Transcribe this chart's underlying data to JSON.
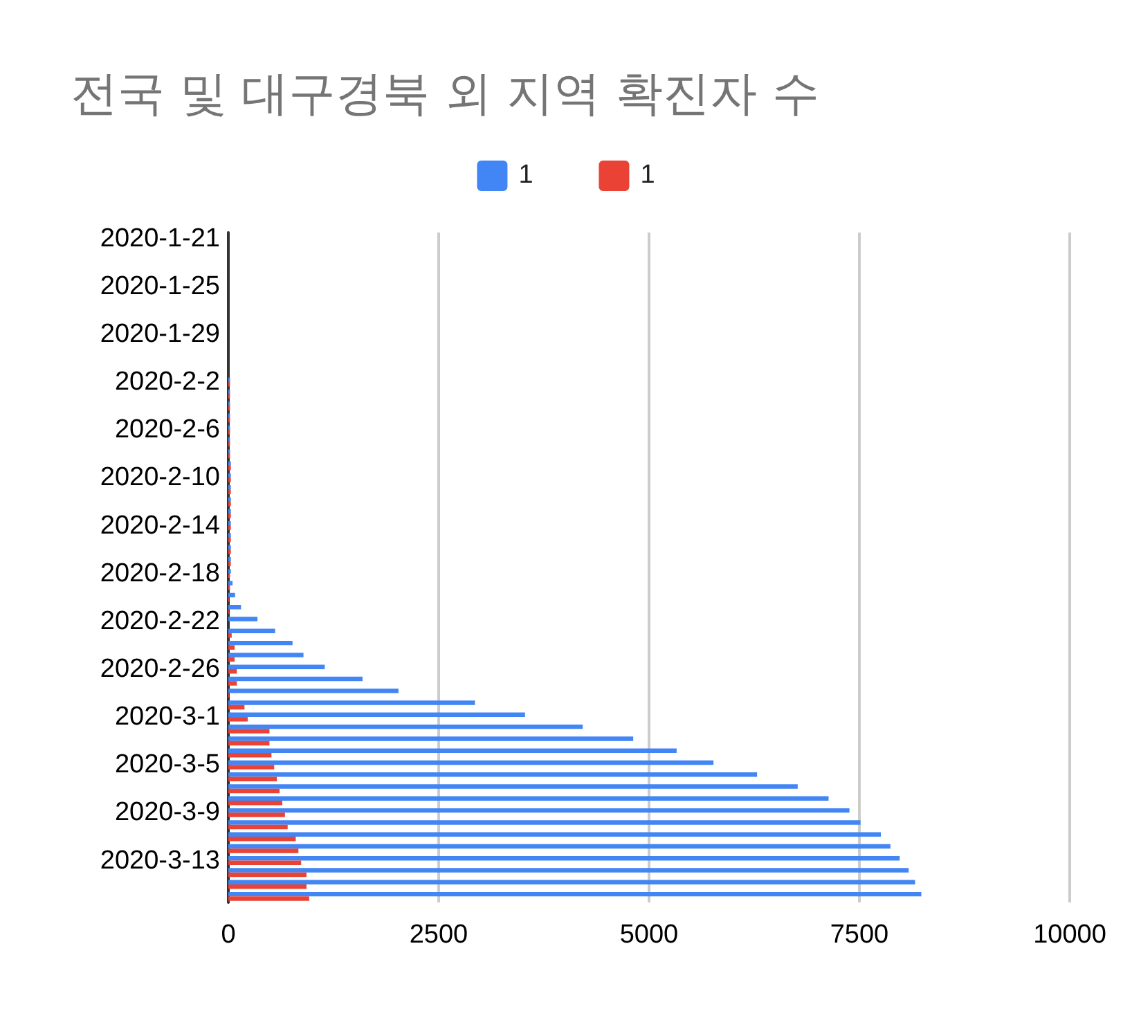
{
  "chart_data": {
    "type": "bar",
    "orientation": "horizontal",
    "title": "전국 및 대구경북 외 지역 확진자 수",
    "categories": [
      "2020-1-21",
      null,
      null,
      null,
      "2020-1-25",
      null,
      null,
      null,
      "2020-1-29",
      null,
      null,
      null,
      "2020-2-2",
      null,
      null,
      null,
      "2020-2-6",
      null,
      null,
      null,
      "2020-2-10",
      null,
      null,
      null,
      "2020-2-14",
      null,
      null,
      null,
      "2020-2-18",
      null,
      null,
      null,
      "2020-2-22",
      null,
      null,
      null,
      "2020-2-26",
      null,
      null,
      null,
      "2020-3-1",
      null,
      null,
      null,
      "2020-3-5",
      null,
      null,
      null,
      "2020-3-9",
      null,
      null,
      null,
      "2020-3-13",
      null,
      null,
      null
    ],
    "series": [
      {
        "name": "1",
        "color": "#4285f4",
        "values": [
          null,
          null,
          null,
          null,
          null,
          null,
          null,
          null,
          null,
          null,
          null,
          null,
          20,
          20,
          20,
          20,
          20,
          20,
          20,
          30,
          30,
          30,
          30,
          30,
          30,
          30,
          30,
          30,
          30,
          50,
          80,
          150,
          346,
          556,
          763,
          893,
          1146,
          1595,
          2022,
          2931,
          3526,
          4212,
          4812,
          5328,
          5766,
          6284,
          6767,
          7134,
          7382,
          7513,
          7755,
          7869,
          7979,
          8086,
          8162,
          8236
        ]
      },
      {
        "name": "1",
        "color": "#ea4335",
        "values": [
          null,
          null,
          null,
          null,
          null,
          null,
          null,
          null,
          null,
          null,
          null,
          null,
          20,
          20,
          20,
          20,
          20,
          20,
          20,
          30,
          30,
          30,
          30,
          30,
          30,
          30,
          30,
          30,
          20,
          20,
          10,
          10,
          0,
          40,
          75,
          75,
          101,
          101,
          10,
          192,
          230,
          489,
          489,
          513,
          545,
          577,
          609,
          641,
          673,
          705,
          801,
          833,
          865,
          929,
          929,
          961
        ]
      }
    ],
    "xlim": [
      0,
      10000
    ],
    "xticks": [
      0,
      2500,
      5000,
      7500,
      10000
    ],
    "grid": "x",
    "legend": "top"
  }
}
